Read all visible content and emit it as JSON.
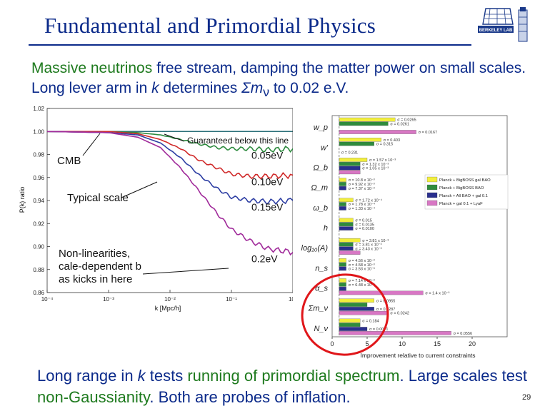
{
  "slide": {
    "title": "Fundamental and Primordial Physics",
    "page_number": "29",
    "logo_text": "BERKELEY LAB",
    "intro": {
      "a": "Massive neutrinos",
      "b": " free stream, damping the matter power on small scales.  Long lever arm in ",
      "c": "k",
      "d": " determines ",
      "e": "Σm",
      "f": "ν",
      "g": " to 0.02 e.V."
    },
    "footer": {
      "a": "Long range in ",
      "b": "k",
      "c": " tests ",
      "d": "running of primordial spectrum",
      "e": ".  Large scales test ",
      "f": "non-Gaussianity",
      "g": ".  Both are probes of inflation."
    }
  },
  "chart_data": [
    {
      "type": "line",
      "title": "",
      "xlabel": "k [Mpc/h]",
      "ylabel": "P(k) ratio",
      "x_scale": "log",
      "xlim": [
        0.0001,
        1
      ],
      "ylim": [
        0.86,
        1.02
      ],
      "x_ticks": [
        "10⁻⁴",
        "10⁻³",
        "10⁻²",
        "10⁻¹",
        "10⁰"
      ],
      "y_ticks": [
        "1.02",
        "1.00",
        "0.98",
        "0.96",
        "0.94",
        "0.92",
        "0.90",
        "0.88",
        "0.86"
      ],
      "series": [
        {
          "name": "0.05eV",
          "color": "#2d8a3e",
          "x": [
            0.0001,
            0.001,
            0.003,
            0.007,
            0.015,
            0.03,
            0.06,
            0.1,
            0.2,
            0.4,
            1.0
          ],
          "y": [
            1.0,
            1.0,
            0.999,
            0.997,
            0.993,
            0.989,
            0.986,
            0.985,
            0.985,
            0.984,
            0.985
          ]
        },
        {
          "name": "0.10eV",
          "color": "#d02a2a",
          "x": [
            0.0001,
            0.001,
            0.003,
            0.007,
            0.015,
            0.03,
            0.06,
            0.1,
            0.2,
            0.4,
            1.0
          ],
          "y": [
            1.0,
            1.0,
            0.998,
            0.993,
            0.985,
            0.975,
            0.968,
            0.963,
            0.961,
            0.961,
            0.962
          ]
        },
        {
          "name": "0.15eV",
          "color": "#2d3ea3",
          "x": [
            0.0001,
            0.001,
            0.003,
            0.007,
            0.015,
            0.03,
            0.06,
            0.1,
            0.2,
            0.4,
            1.0
          ],
          "y": [
            1.0,
            0.999,
            0.997,
            0.99,
            0.977,
            0.962,
            0.95,
            0.943,
            0.94,
            0.939,
            0.94
          ]
        },
        {
          "name": "0.2eV",
          "color": "#a02a9a",
          "x": [
            0.0001,
            0.001,
            0.003,
            0.007,
            0.015,
            0.03,
            0.06,
            0.1,
            0.2,
            0.4,
            1.0
          ],
          "y": [
            1.0,
            0.999,
            0.995,
            0.986,
            0.968,
            0.948,
            0.928,
            0.915,
            0.905,
            0.898,
            0.895
          ]
        }
      ],
      "annotations": [
        "Guaranteed below this line",
        "CMB",
        "Typical scale",
        "Non-linearities, scale-dependent bias kicks in here"
      ]
    },
    {
      "type": "bar",
      "xlabel": "Improvement relative to current constraints",
      "xlim": [
        0,
        25
      ],
      "x_ticks": [
        "0",
        "5",
        "10",
        "15",
        "20"
      ],
      "categories": [
        "w_p",
        "w'",
        "Ω_b",
        "Ω_m",
        "ω_b",
        "h",
        "log₁₀(A)",
        "n_s",
        "α_s",
        "Σm_ν",
        "N_ν"
      ],
      "legend": [
        "Planck + BigBOSS gal BAO",
        "Planck + BigBOSS BAO",
        "Planck + All BAO + gal 0.1",
        "Planck + gal 0.1 + LyaF"
      ],
      "legend_colors": [
        "#f2ee3c",
        "#2e8b3c",
        "#2a2f8e",
        "#d877c4"
      ],
      "series": [
        {
          "name": "Planck + BigBOSS gal BAO",
          "values": [
            9,
            7,
            5,
            2,
            3,
            3,
            4,
            2,
            2,
            6,
            4
          ]
        },
        {
          "name": "Planck + BigBOSS BAO",
          "values": [
            8,
            6,
            4,
            2,
            2,
            3,
            3,
            2,
            2,
            5,
            4
          ]
        },
        {
          "name": "Planck + All BAO + gal 0.1",
          "values": [
            0,
            0,
            4,
            2,
            2,
            3,
            3,
            2,
            2,
            6,
            5
          ]
        },
        {
          "name": "Planck + gal 0.1 + LyaF",
          "values": [
            12,
            0,
            4,
            0,
            0,
            0,
            4,
            0,
            13,
            8,
            17
          ]
        }
      ],
      "bar_labels": [
        [
          "σ = 0.0265",
          "σ = 0.0261",
          "",
          "σ = 0.0167"
        ],
        [
          "σ = 0.403",
          "σ = 0.315",
          "",
          "σ = 0.231"
        ],
        [
          "σ = 1.57 x 10⁻³",
          "σ = 1.32 x 10⁻³",
          "σ = 1.05 x 10⁻³",
          ""
        ],
        [
          "σ = 10.8 x 10⁻³",
          "σ = 9.92 x 10⁻³",
          "σ = 7.37 x 10⁻³",
          ""
        ],
        [
          "σ = 1.72 x 10⁻⁴",
          "σ = 1.78 x 10⁻⁴",
          "σ = 1.33 x 10⁻⁴",
          ""
        ],
        [
          "σ = 0.015",
          "σ = 0.0135",
          "σ = 0.0100",
          ""
        ],
        [
          "σ = 3.81 x 10⁻³",
          "σ = 3.81 x 10⁻³",
          "σ = 3.43 x 10⁻³",
          ""
        ],
        [
          "σ = 4.56 x 10⁻³",
          "σ = 4.58 x 10⁻³",
          "σ = 3.53 x 10⁻³",
          ""
        ],
        [
          "σ = 7.14 x 10⁻³",
          "σ = 6.48 x 10⁻³",
          "",
          "σ = 1.4 x 10⁻³"
        ],
        [
          "σ = 0.0955",
          "",
          "σ = 0.0287",
          "σ = 0.0242"
        ],
        [
          "σ = 0.184",
          "",
          "σ = 0.0071",
          "σ = 0.0556"
        ]
      ]
    }
  ]
}
